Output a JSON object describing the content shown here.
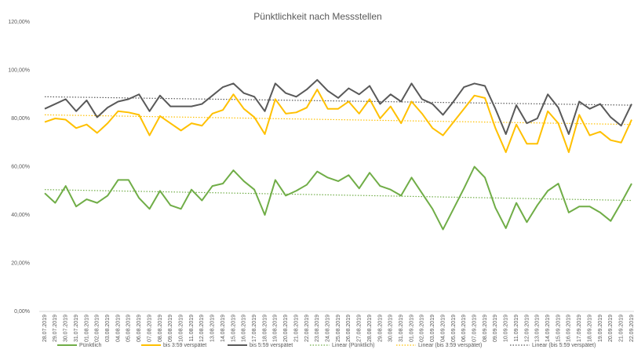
{
  "chart_data": {
    "type": "line",
    "title": "Pünktlichkeit nach Messstellen",
    "categories": [
      "28.07.2019",
      "29.07.2019",
      "30.07.2019",
      "31.07.2019",
      "01.08.2019",
      "02.08.2019",
      "03.08.2019",
      "04.08.2019",
      "05.08.2019",
      "06.08.2019",
      "07.08.2019",
      "08.08.2019",
      "09.08.2019",
      "10.08.2019",
      "11.08.2019",
      "12.08.2019",
      "13.08.2019",
      "14.08.2019",
      "15.08.2019",
      "16.08.2019",
      "17.08.2019",
      "18.08.2019",
      "19.08.2019",
      "20.08.2019",
      "21.08.2019",
      "22.08.2019",
      "23.08.2019",
      "24.08.2019",
      "25.08.2019",
      "26.08.2019",
      "27.08.2019",
      "28.08.2019",
      "29.08.2019",
      "30.08.2019",
      "31.08.2019",
      "01.09.2019",
      "02.09.2019",
      "03.09.2019",
      "04.09.2019",
      "05.09.2019",
      "06.09.2019",
      "07.09.2019",
      "08.09.2019",
      "09.09.2019",
      "10.09.2019",
      "11.09.2019",
      "12.09.2019",
      "13.09.2019",
      "14.09.2019",
      "15.09.2019",
      "16.09.2019",
      "17.09.2019",
      "18.09.2019",
      "19.09.2019",
      "20.09.2019",
      "21.09.2019",
      "22.09.2019"
    ],
    "series": [
      {
        "name": "Pünktlich",
        "color": "#70ad47",
        "values": [
          49,
          45,
          52,
          43.5,
          46.5,
          45,
          48,
          54.5,
          54.5,
          47,
          42.5,
          50,
          44,
          42.5,
          50.5,
          46,
          52,
          53,
          58.5,
          54,
          50.5,
          40,
          54.5,
          48,
          50,
          52.5,
          58,
          55.5,
          54,
          56.5,
          51,
          57.5,
          52,
          50.5,
          48,
          55.5,
          49,
          42.5,
          34,
          42.5,
          51,
          60,
          55.5,
          43,
          34.5,
          45,
          37,
          44,
          50,
          53,
          41,
          43.5,
          43.5,
          41,
          37.5,
          45,
          53
        ]
      },
      {
        "name": "bis 3:59 verspätet",
        "color": "#ffc000",
        "values": [
          78.5,
          80,
          79.5,
          76,
          77.5,
          74,
          78,
          83,
          82.5,
          81.5,
          73,
          81,
          78,
          75,
          78,
          77,
          82,
          83.5,
          90,
          84,
          80.5,
          73.5,
          88,
          82,
          82.5,
          84.5,
          92,
          84,
          84,
          87,
          82,
          88,
          80,
          85,
          78,
          87,
          82,
          76,
          73,
          78.5,
          84,
          89.5,
          88.5,
          76,
          66,
          77.5,
          69.5,
          69.5,
          83,
          78,
          66,
          81.5,
          73,
          74.5,
          71,
          70,
          79.5
        ]
      },
      {
        "name": "bis 5:59 verspätet",
        "color": "#595959",
        "values": [
          84,
          86,
          88,
          83,
          87.5,
          80.5,
          84.5,
          87,
          88,
          90,
          83,
          89.5,
          85,
          85,
          85,
          86,
          89.5,
          93,
          94.5,
          90.5,
          89,
          83,
          94.5,
          90.5,
          89,
          92,
          96,
          91.5,
          88.5,
          92.5,
          90,
          93.5,
          86,
          90,
          87,
          94.5,
          88,
          86,
          81.5,
          87,
          93,
          94.5,
          93.5,
          84,
          73.5,
          85.5,
          78,
          80,
          90,
          84.5,
          73.5,
          87,
          84,
          86,
          80.5,
          77,
          86
        ]
      }
    ],
    "trendlines": [
      {
        "name": "Linear (Pünktlich)",
        "color": "#70ad47",
        "from": 50.5,
        "to": 46
      },
      {
        "name": "Linear (bis 3:59 verspätet)",
        "color": "#ffc000",
        "from": 81.5,
        "to": 77.5
      },
      {
        "name": "Linear (bis 5:59 verspätet)",
        "color": "#595959",
        "from": 89,
        "to": 85.5
      }
    ],
    "ylim": [
      0,
      120
    ],
    "yticks": [
      {
        "value": 0,
        "label": "0,00%"
      },
      {
        "value": 20,
        "label": "20,00%"
      },
      {
        "value": 40,
        "label": "40,00%"
      },
      {
        "value": 60,
        "label": "60,00%"
      },
      {
        "value": 80,
        "label": "80,00%"
      },
      {
        "value": 100,
        "label": "100,00%"
      },
      {
        "value": 120,
        "label": "120,00%"
      }
    ],
    "grid": false,
    "legend": "bottom"
  }
}
